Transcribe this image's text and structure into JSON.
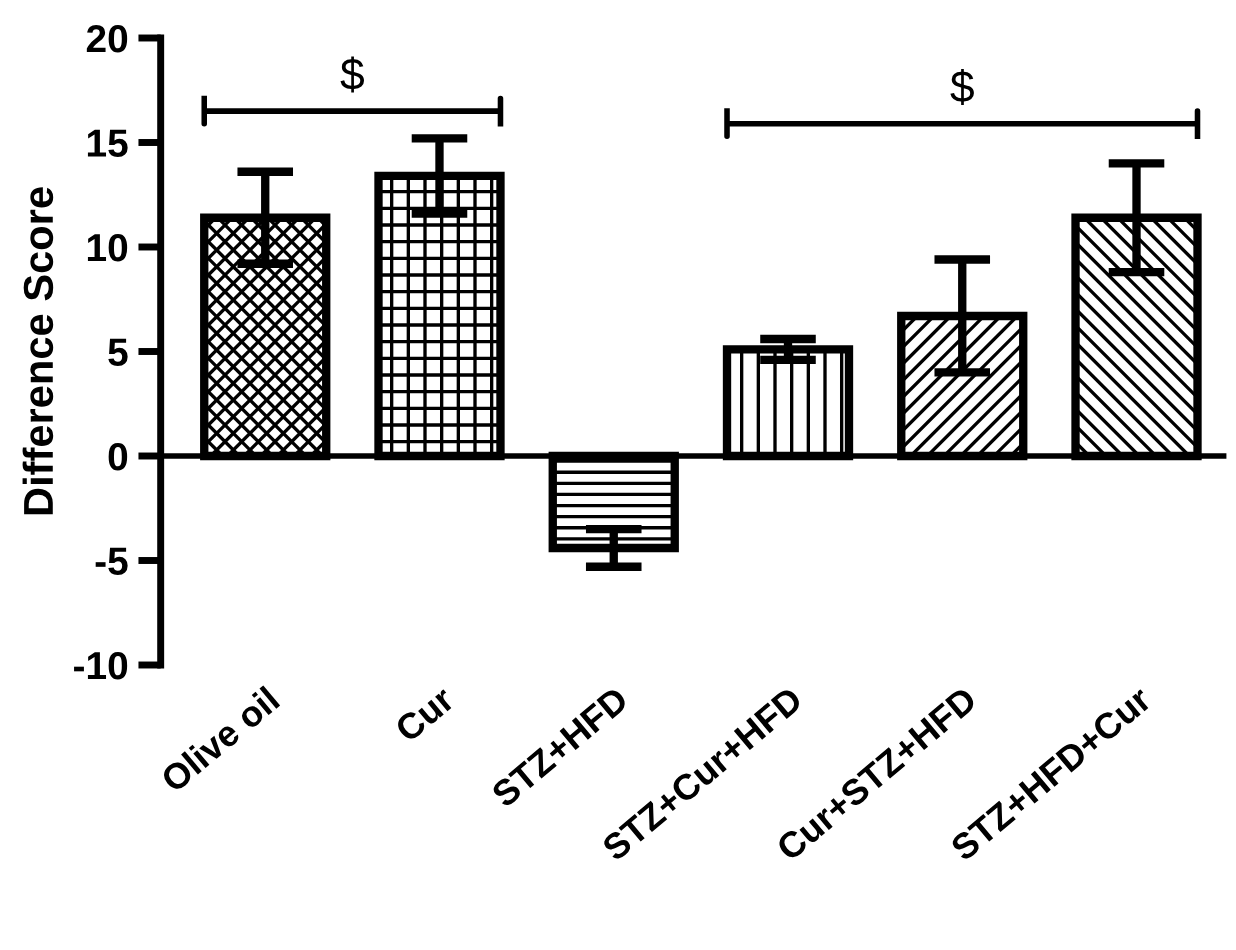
{
  "chart_data": {
    "type": "bar",
    "ylabel": "Difference Score",
    "categories": [
      "Olive oil",
      "Cur",
      "STZ+HFD",
      "STZ+Cur+HFD",
      "Cur+STZ+HFD",
      "STZ+HFD+Cur"
    ],
    "values": [
      11.4,
      13.4,
      -4.4,
      5.1,
      6.7,
      11.4
    ],
    "errors": [
      2.2,
      1.8,
      0.9,
      0.5,
      2.7,
      2.6
    ],
    "ylim": [
      -10,
      20
    ],
    "yticks": [
      -10,
      -5,
      0,
      5,
      10,
      15,
      20
    ],
    "annotations": [
      "$",
      "$"
    ],
    "legend": false
  }
}
